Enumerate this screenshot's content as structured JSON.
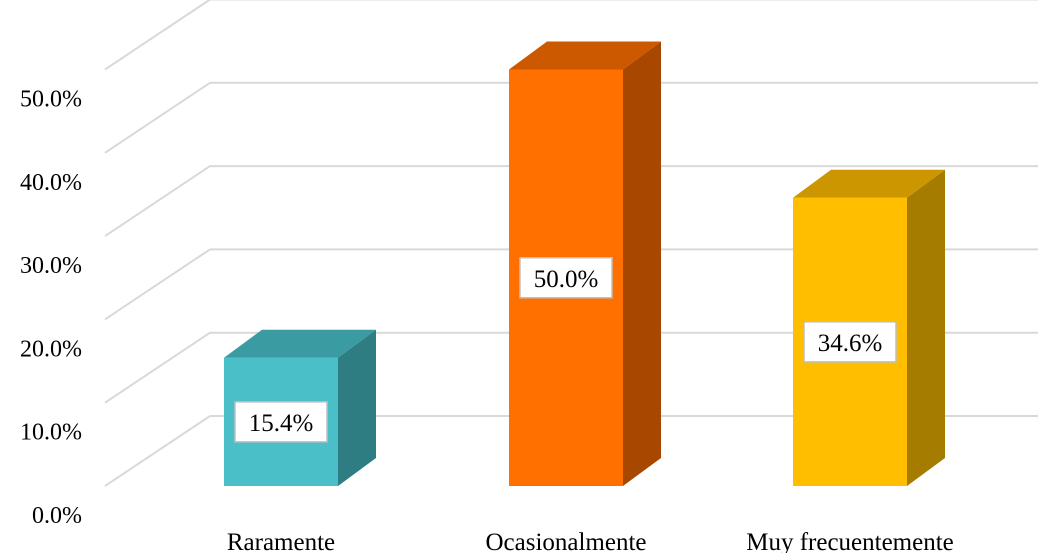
{
  "chart_data": {
    "type": "bar",
    "categories": [
      "Raramente",
      "Ocasionalmente",
      "Muy frecuentemente"
    ],
    "values": [
      15.4,
      50.0,
      34.6
    ],
    "data_labels": [
      "15.4%",
      "50.0%",
      "34.6%"
    ],
    "yticks": [
      0,
      10,
      20,
      30,
      40,
      50
    ],
    "ytick_labels": [
      "0.0%",
      "10.0%",
      "20.0%",
      "30.0%",
      "40.0%",
      "50.0%"
    ],
    "ylim": [
      0,
      60
    ],
    "grid": true,
    "legend": "none",
    "style": "3d-column",
    "colors": [
      {
        "front": "#4bbfc8",
        "top": "#3a9ba2",
        "side": "#2e7d82"
      },
      {
        "front": "#ff7000",
        "top": "#cc5800",
        "side": "#a84700"
      },
      {
        "front": "#ffbf00",
        "top": "#cc9600",
        "side": "#a67c00"
      }
    ]
  }
}
